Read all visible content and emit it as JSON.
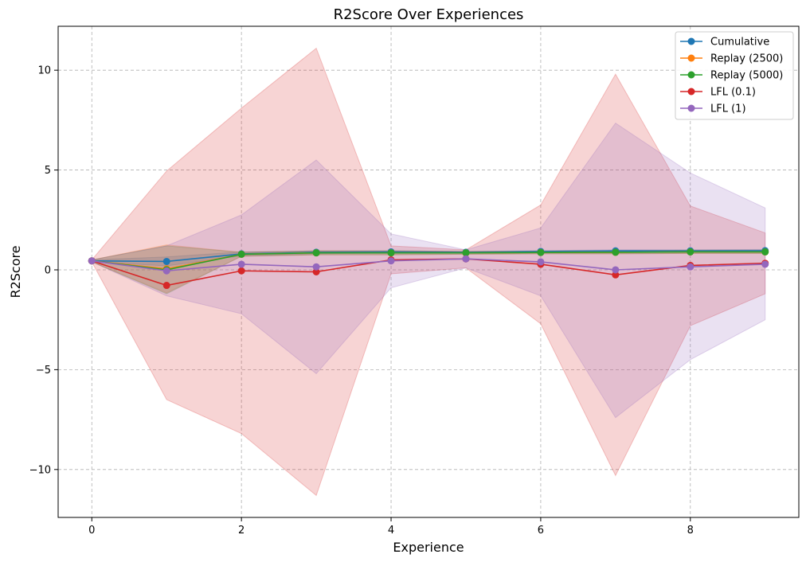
{
  "chart_data": {
    "type": "line",
    "title": "R2Score Over Experiences",
    "xlabel": "Experience",
    "ylabel": "R2Score",
    "x": [
      0,
      1,
      2,
      3,
      4,
      5,
      6,
      7,
      8,
      9
    ],
    "xlim": [
      -0.45,
      9.45
    ],
    "ylim": [
      -12.4,
      12.2
    ],
    "xticks": [
      0,
      2,
      4,
      6,
      8
    ],
    "yticks": [
      -10,
      -5,
      0,
      5,
      10
    ],
    "grid": true,
    "legend_position": "top-right",
    "series": [
      {
        "name": "Cumulative",
        "color": "#1f77b4",
        "values": [
          0.45,
          0.42,
          0.8,
          0.88,
          0.9,
          0.88,
          0.92,
          0.95,
          0.95,
          0.96
        ],
        "lower": [
          0.4,
          0.2,
          0.7,
          0.8,
          0.85,
          0.85,
          0.88,
          0.9,
          0.9,
          0.9
        ],
        "upper": [
          0.5,
          0.65,
          0.9,
          0.95,
          0.95,
          0.92,
          0.96,
          1.0,
          1.0,
          1.02
        ]
      },
      {
        "name": "Replay (2500)",
        "color": "#ff7f0e",
        "values": [
          0.45,
          0.05,
          0.78,
          0.85,
          0.85,
          0.85,
          0.87,
          0.88,
          0.9,
          0.9
        ],
        "lower": [
          0.4,
          -1.15,
          0.68,
          0.75,
          0.75,
          0.78,
          0.8,
          0.8,
          0.82,
          0.82
        ],
        "upper": [
          0.5,
          1.25,
          0.88,
          0.95,
          0.95,
          0.92,
          0.94,
          0.96,
          0.98,
          0.98
        ]
      },
      {
        "name": "Replay (5000)",
        "color": "#2ca02c",
        "values": [
          0.45,
          0.0,
          0.78,
          0.85,
          0.85,
          0.85,
          0.87,
          0.88,
          0.9,
          0.9
        ],
        "lower": [
          0.4,
          -1.2,
          0.68,
          0.75,
          0.75,
          0.78,
          0.8,
          0.8,
          0.82,
          0.82
        ],
        "upper": [
          0.5,
          1.2,
          0.88,
          0.95,
          0.95,
          0.92,
          0.94,
          0.96,
          0.98,
          0.98
        ]
      },
      {
        "name": "LFL (0.1)",
        "color": "#d62728",
        "values": [
          0.45,
          -0.78,
          -0.05,
          -0.1,
          0.5,
          0.55,
          0.28,
          -0.25,
          0.22,
          0.33
        ],
        "lower": [
          0.4,
          -6.5,
          -8.2,
          -11.3,
          -0.2,
          0.1,
          -2.7,
          -10.3,
          -2.8,
          -1.2
        ],
        "upper": [
          0.5,
          4.95,
          8.1,
          11.1,
          1.2,
          1.0,
          3.25,
          9.8,
          3.2,
          1.85
        ]
      },
      {
        "name": "LFL (1)",
        "color": "#9467bd",
        "values": [
          0.45,
          -0.05,
          0.28,
          0.15,
          0.45,
          0.55,
          0.4,
          0.0,
          0.15,
          0.28
        ],
        "lower": [
          0.4,
          -1.3,
          -2.2,
          -5.2,
          -0.9,
          0.1,
          -1.3,
          -7.4,
          -4.5,
          -2.5
        ],
        "upper": [
          0.5,
          1.2,
          2.75,
          5.5,
          1.8,
          1.0,
          2.1,
          7.35,
          4.85,
          3.1
        ]
      }
    ],
    "band_color": {
      "Cumulative": "#1f77b4",
      "Replay (2500)": "#ff7f0e",
      "Replay (5000)": "#2ca02c",
      "LFL (0.1)": "#d62728",
      "LFL (1)": "#9467bd"
    }
  }
}
